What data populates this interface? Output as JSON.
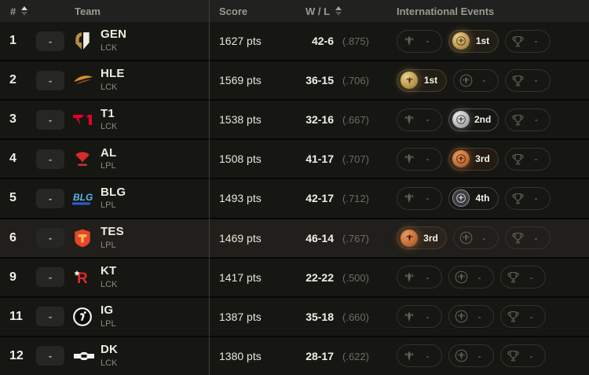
{
  "table": {
    "columns": {
      "rank": "#",
      "team": "Team",
      "score": "Score",
      "wl": "W / L",
      "events": "International Events"
    },
    "event_slots": [
      "First Stand",
      "MSI",
      "Worlds"
    ],
    "rows": [
      {
        "rank": "1",
        "movement": "-",
        "team": "GEN",
        "league": "LCK",
        "score": "1627 pts",
        "record": "42-6",
        "ratio": "(.875)",
        "highlighted": false,
        "events": [
          {
            "event": "First Stand",
            "placement": "-"
          },
          {
            "event": "MSI",
            "placement": "1st",
            "medal": "gold"
          },
          {
            "event": "Worlds",
            "placement": "-"
          }
        ]
      },
      {
        "rank": "2",
        "movement": "-",
        "team": "HLE",
        "league": "LCK",
        "score": "1569 pts",
        "record": "36-15",
        "ratio": "(.706)",
        "highlighted": false,
        "events": [
          {
            "event": "First Stand",
            "placement": "1st",
            "medal": "gold"
          },
          {
            "event": "MSI",
            "placement": "-"
          },
          {
            "event": "Worlds",
            "placement": "-"
          }
        ]
      },
      {
        "rank": "3",
        "movement": "-",
        "team": "T1",
        "league": "LCK",
        "score": "1538 pts",
        "record": "32-16",
        "ratio": "(.667)",
        "highlighted": false,
        "events": [
          {
            "event": "First Stand",
            "placement": "-"
          },
          {
            "event": "MSI",
            "placement": "2nd",
            "medal": "silver"
          },
          {
            "event": "Worlds",
            "placement": "-"
          }
        ]
      },
      {
        "rank": "4",
        "movement": "-",
        "team": "AL",
        "league": "LPL",
        "score": "1508 pts",
        "record": "41-17",
        "ratio": "(.707)",
        "highlighted": false,
        "events": [
          {
            "event": "First Stand",
            "placement": "-"
          },
          {
            "event": "MSI",
            "placement": "3rd",
            "medal": "bronze"
          },
          {
            "event": "Worlds",
            "placement": "-"
          }
        ]
      },
      {
        "rank": "5",
        "movement": "-",
        "team": "BLG",
        "league": "LPL",
        "score": "1493 pts",
        "record": "42-17",
        "ratio": "(.712)",
        "highlighted": false,
        "events": [
          {
            "event": "First Stand",
            "placement": "-"
          },
          {
            "event": "MSI",
            "placement": "4th",
            "medal": "fourth"
          },
          {
            "event": "Worlds",
            "placement": "-"
          }
        ]
      },
      {
        "rank": "6",
        "movement": "-",
        "team": "TES",
        "league": "LPL",
        "score": "1469 pts",
        "record": "46-14",
        "ratio": "(.767)",
        "highlighted": true,
        "events": [
          {
            "event": "First Stand",
            "placement": "3rd",
            "medal": "bronze"
          },
          {
            "event": "MSI",
            "placement": "-"
          },
          {
            "event": "Worlds",
            "placement": "-"
          }
        ]
      },
      {
        "rank": "9",
        "movement": "-",
        "team": "KT",
        "league": "LCK",
        "score": "1417 pts",
        "record": "22-22",
        "ratio": "(.500)",
        "highlighted": false,
        "events": [
          {
            "event": "First Stand",
            "placement": "-"
          },
          {
            "event": "MSI",
            "placement": "-"
          },
          {
            "event": "Worlds",
            "placement": "-"
          }
        ]
      },
      {
        "rank": "11",
        "movement": "-",
        "team": "IG",
        "league": "LPL",
        "score": "1387 pts",
        "record": "35-18",
        "ratio": "(.660)",
        "highlighted": false,
        "events": [
          {
            "event": "First Stand",
            "placement": "-"
          },
          {
            "event": "MSI",
            "placement": "-"
          },
          {
            "event": "Worlds",
            "placement": "-"
          }
        ]
      },
      {
        "rank": "12",
        "movement": "-",
        "team": "DK",
        "league": "LCK",
        "score": "1380 pts",
        "record": "28-17",
        "ratio": "(.622)",
        "highlighted": false,
        "events": [
          {
            "event": "First Stand",
            "placement": "-"
          },
          {
            "event": "MSI",
            "placement": "-"
          },
          {
            "event": "Worlds",
            "placement": "-"
          }
        ]
      }
    ]
  },
  "colors": {
    "gold": "#C9A45C",
    "silver": "#C9C9C9",
    "bronze": "#CE7C42",
    "fourth_place": "#3F3F44",
    "row_background": "#161613",
    "row_highlight": "#201F1B",
    "header_background": "#21211F"
  }
}
